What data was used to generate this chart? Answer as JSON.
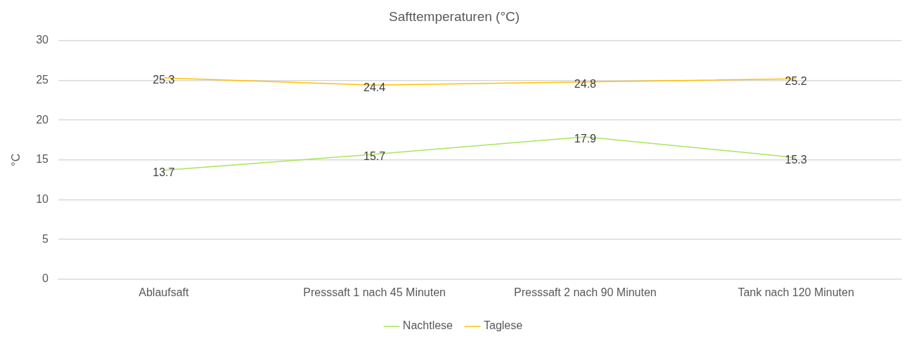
{
  "chart_data": {
    "type": "line",
    "title": "Safttemperaturen (°C)",
    "ylabel": "°C",
    "categories": [
      "Ablaufsaft",
      "Presssaft 1 nach 45 Minuten",
      "Presssaft 2 nach 90 Minuten",
      "Tank nach 120 Minuten"
    ],
    "series": [
      {
        "name": "Nachtlese",
        "color": "#a9e55a",
        "values": [
          13.7,
          15.7,
          17.9,
          15.3
        ]
      },
      {
        "name": "Taglese",
        "color": "#ffc000",
        "values": [
          25.3,
          24.4,
          24.8,
          25.2
        ]
      }
    ],
    "ylim": [
      0,
      30
    ],
    "yticks": [
      0,
      5,
      10,
      15,
      20,
      25,
      30
    ],
    "grid": "y",
    "legend": "bottom",
    "marker": "none",
    "line_style": "solid",
    "data_labels": true
  }
}
